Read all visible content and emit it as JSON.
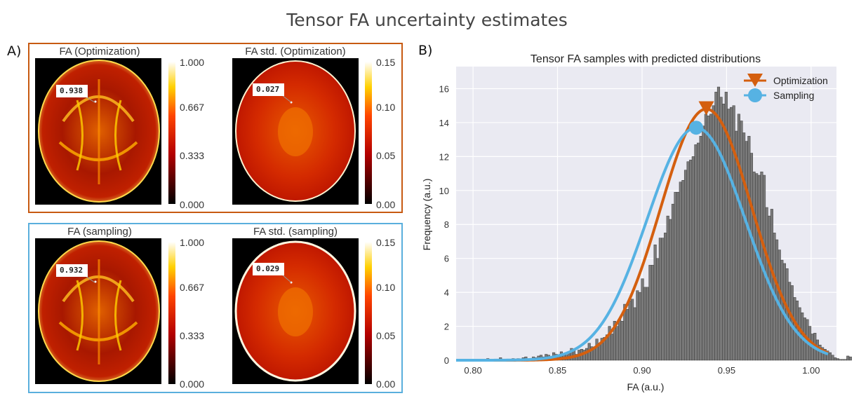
{
  "figure": {
    "title": "Tensor FA uncertainty estimates",
    "panel_a_tag": "A)",
    "panel_b_tag": "B)"
  },
  "panel_a": {
    "optimization": {
      "frame_color": "#c75a12",
      "fa": {
        "title": "FA (Optimization)",
        "callout": "0.938",
        "ticks": [
          "1.000",
          "0.667",
          "0.333",
          "0.000"
        ]
      },
      "std": {
        "title": "FA std. (Optimization)",
        "callout": "0.027",
        "ticks": [
          "0.15",
          "0.10",
          "0.05",
          "0.00"
        ]
      }
    },
    "sampling": {
      "frame_color": "#5aafdd",
      "fa": {
        "title": "FA (sampling)",
        "callout": "0.932",
        "ticks": [
          "1.000",
          "0.667",
          "0.333",
          "0.000"
        ]
      },
      "std": {
        "title": "FA std. (sampling)",
        "callout": "0.029",
        "ticks": [
          "0.15",
          "0.10",
          "0.05",
          "0.00"
        ]
      }
    }
  },
  "chart_data": {
    "type": "bar",
    "title": "Tensor FA samples with predicted distributions",
    "xlabel": "FA (a.u.)",
    "ylabel": "Frequency (a.u.)",
    "xlim": [
      0.79,
      1.015
    ],
    "ylim": [
      0,
      17.3
    ],
    "xticks": [
      0.8,
      0.85,
      0.9,
      0.95,
      1.0
    ],
    "xtick_labels": [
      "0.80",
      "0.85",
      "0.90",
      "0.95",
      "1.00"
    ],
    "yticks": [
      0,
      2,
      4,
      6,
      8,
      10,
      12,
      14,
      16
    ],
    "ytick_labels": [
      "0",
      "2",
      "4",
      "6",
      "8",
      "10",
      "12",
      "14",
      "16"
    ],
    "histogram": {
      "name": "FA samples",
      "color": "#7a7a7a",
      "bin_start": 0.79,
      "bin_width": 0.0015,
      "values": [
        0,
        0,
        0,
        0,
        0,
        0.05,
        0,
        0,
        0,
        0.05,
        0,
        0,
        0.1,
        0,
        0,
        0,
        0,
        0.15,
        0,
        0,
        0,
        0,
        0.1,
        0,
        0.1,
        0.05,
        0.15,
        0.2,
        0.05,
        0.1,
        0.2,
        0.15,
        0.25,
        0.3,
        0.2,
        0.35,
        0.3,
        0.2,
        0.45,
        0.35,
        0.25,
        0.5,
        0.4,
        0.3,
        0.45,
        0.7,
        0.6,
        0.35,
        0.6,
        0.65,
        0.6,
        0.7,
        1.0,
        0.8,
        0.75,
        1.25,
        1.0,
        1.3,
        1.35,
        1.5,
        2.0,
        1.55,
        2.3,
        2.0,
        2.4,
        2.3,
        3.3,
        3.0,
        3.5,
        3.6,
        3.1,
        4.1,
        4.0,
        4.8,
        4.3,
        4.3,
        5.6,
        5.6,
        6.8,
        6.0,
        7.2,
        7.2,
        7.5,
        8.5,
        8.3,
        9.2,
        9.9,
        9.9,
        10.5,
        10.6,
        11.2,
        11.7,
        11.8,
        12.0,
        12.7,
        12.8,
        13.2,
        13.8,
        14.5,
        14.4,
        14.5,
        15.0,
        15.8,
        16.1,
        15.5,
        15.1,
        15.8,
        14.8,
        14.9,
        15.0,
        13.5,
        14.5,
        14.1,
        13.4,
        12.9,
        13.2,
        12.2,
        11.1,
        11.0,
        10.9,
        11.1,
        10.9,
        9.0,
        8.5,
        8.9,
        7.5,
        7.1,
        6.5,
        5.9,
        5.7,
        5.4,
        4.6,
        4.4,
        3.7,
        3.5,
        3.1,
        2.8,
        2.5,
        2.4,
        2.0,
        1.55,
        1.6,
        1.2,
        0.9,
        0.75,
        0.65,
        0.55,
        0.45,
        0.3,
        0.15,
        0.1,
        0.05,
        0.05,
        0.05,
        0.25,
        0.2
      ]
    },
    "series": [
      {
        "name": "Optimization",
        "color": "#d45f0f",
        "marker": "triangle-down",
        "mean": 0.938,
        "std": 0.027,
        "peak": 14.8,
        "marker_x": 0.938,
        "marker_y": 14.8
      },
      {
        "name": "Sampling",
        "color": "#56b2e3",
        "marker": "circle",
        "mean": 0.932,
        "std": 0.029,
        "peak": 13.7,
        "marker_x": 0.932,
        "marker_y": 13.7
      }
    ],
    "legend_position": "top-right"
  }
}
